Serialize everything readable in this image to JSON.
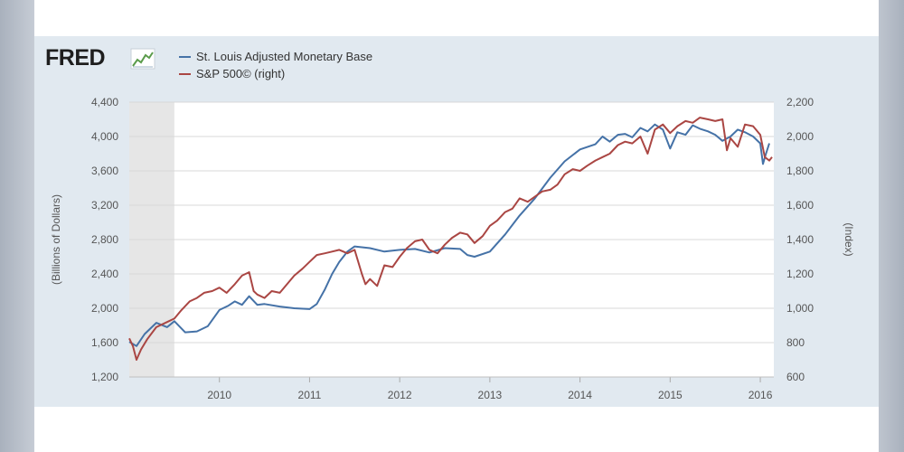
{
  "brand": {
    "logo_text": "FRED",
    "logo_icon": "fred-graph-icon"
  },
  "legend": [
    {
      "label": "St. Louis Adjusted Monetary Base",
      "color": "#4572a7"
    },
    {
      "label": "S&P 500© (right)",
      "color": "#aa4643"
    }
  ],
  "chart_data": {
    "type": "line",
    "grid": true,
    "legend_position": "top-left",
    "recession_band": {
      "x": [
        2009.0,
        2009.5
      ]
    },
    "x_range": [
      2009.0,
      2016.15
    ],
    "x_ticks": [
      {
        "value": 2010,
        "label": "2010"
      },
      {
        "value": 2011,
        "label": "2011"
      },
      {
        "value": 2012,
        "label": "2012"
      },
      {
        "value": 2013,
        "label": "2013"
      },
      {
        "value": 2014,
        "label": "2014"
      },
      {
        "value": 2015,
        "label": "2015"
      },
      {
        "value": 2016,
        "label": "2016"
      }
    ],
    "y_left": {
      "label": "(Billions of Dollars)",
      "range": [
        1200,
        4400
      ],
      "ticks": [
        {
          "value": 1200,
          "label": "1,200"
        },
        {
          "value": 1600,
          "label": "1,600"
        },
        {
          "value": 2000,
          "label": "2,000"
        },
        {
          "value": 2400,
          "label": "2,400"
        },
        {
          "value": 2800,
          "label": "2,800"
        },
        {
          "value": 3200,
          "label": "3,200"
        },
        {
          "value": 3600,
          "label": "3,600"
        },
        {
          "value": 4000,
          "label": "4,000"
        },
        {
          "value": 4400,
          "label": "4,400"
        }
      ]
    },
    "y_right": {
      "label": "(Index)",
      "range": [
        600,
        2200
      ],
      "ticks": [
        {
          "value": 600,
          "label": "600"
        },
        {
          "value": 800,
          "label": "800"
        },
        {
          "value": 1000,
          "label": "1,000"
        },
        {
          "value": 1200,
          "label": "1,200"
        },
        {
          "value": 1400,
          "label": "1,400"
        },
        {
          "value": 1600,
          "label": "1,600"
        },
        {
          "value": 1800,
          "label": "1,800"
        },
        {
          "value": 2000,
          "label": "2,000"
        },
        {
          "value": 2200,
          "label": "2,200"
        }
      ]
    },
    "series": [
      {
        "name": "St. Louis Adjusted Monetary Base",
        "axis": "left",
        "color": "#4572a7",
        "points": [
          [
            2009.0,
            1610
          ],
          [
            2009.08,
            1560
          ],
          [
            2009.17,
            1700
          ],
          [
            2009.3,
            1830
          ],
          [
            2009.42,
            1780
          ],
          [
            2009.5,
            1850
          ],
          [
            2009.62,
            1720
          ],
          [
            2009.75,
            1730
          ],
          [
            2009.87,
            1790
          ],
          [
            2010.0,
            1980
          ],
          [
            2010.1,
            2030
          ],
          [
            2010.17,
            2080
          ],
          [
            2010.25,
            2040
          ],
          [
            2010.33,
            2140
          ],
          [
            2010.42,
            2040
          ],
          [
            2010.5,
            2050
          ],
          [
            2010.67,
            2020
          ],
          [
            2010.83,
            2000
          ],
          [
            2011.0,
            1990
          ],
          [
            2011.08,
            2050
          ],
          [
            2011.17,
            2220
          ],
          [
            2011.25,
            2400
          ],
          [
            2011.33,
            2540
          ],
          [
            2011.42,
            2660
          ],
          [
            2011.5,
            2720
          ],
          [
            2011.67,
            2700
          ],
          [
            2011.83,
            2660
          ],
          [
            2012.0,
            2680
          ],
          [
            2012.17,
            2690
          ],
          [
            2012.33,
            2650
          ],
          [
            2012.5,
            2700
          ],
          [
            2012.67,
            2690
          ],
          [
            2012.75,
            2620
          ],
          [
            2012.83,
            2600
          ],
          [
            2013.0,
            2660
          ],
          [
            2013.17,
            2860
          ],
          [
            2013.33,
            3080
          ],
          [
            2013.5,
            3280
          ],
          [
            2013.67,
            3520
          ],
          [
            2013.83,
            3710
          ],
          [
            2014.0,
            3850
          ],
          [
            2014.17,
            3910
          ],
          [
            2014.25,
            4000
          ],
          [
            2014.33,
            3940
          ],
          [
            2014.42,
            4020
          ],
          [
            2014.5,
            4030
          ],
          [
            2014.58,
            3990
          ],
          [
            2014.67,
            4100
          ],
          [
            2014.75,
            4060
          ],
          [
            2014.83,
            4140
          ],
          [
            2014.92,
            4080
          ],
          [
            2015.0,
            3860
          ],
          [
            2015.08,
            4050
          ],
          [
            2015.17,
            4020
          ],
          [
            2015.25,
            4130
          ],
          [
            2015.33,
            4090
          ],
          [
            2015.42,
            4060
          ],
          [
            2015.5,
            4020
          ],
          [
            2015.58,
            3950
          ],
          [
            2015.67,
            4000
          ],
          [
            2015.75,
            4080
          ],
          [
            2015.83,
            4050
          ],
          [
            2015.92,
            4000
          ],
          [
            2016.0,
            3920
          ],
          [
            2016.03,
            3680
          ],
          [
            2016.06,
            3790
          ],
          [
            2016.1,
            3920
          ]
        ]
      },
      {
        "name": "S&P 500© (right)",
        "axis": "right",
        "color": "#aa4643",
        "points": [
          [
            2009.0,
            825
          ],
          [
            2009.04,
            780
          ],
          [
            2009.08,
            700
          ],
          [
            2009.13,
            760
          ],
          [
            2009.2,
            820
          ],
          [
            2009.3,
            890
          ],
          [
            2009.42,
            920
          ],
          [
            2009.5,
            940
          ],
          [
            2009.58,
            990
          ],
          [
            2009.67,
            1040
          ],
          [
            2009.75,
            1060
          ],
          [
            2009.83,
            1090
          ],
          [
            2009.92,
            1100
          ],
          [
            2010.0,
            1120
          ],
          [
            2010.08,
            1090
          ],
          [
            2010.17,
            1140
          ],
          [
            2010.25,
            1190
          ],
          [
            2010.33,
            1210
          ],
          [
            2010.38,
            1100
          ],
          [
            2010.42,
            1080
          ],
          [
            2010.5,
            1060
          ],
          [
            2010.58,
            1100
          ],
          [
            2010.67,
            1090
          ],
          [
            2010.75,
            1140
          ],
          [
            2010.83,
            1190
          ],
          [
            2010.92,
            1230
          ],
          [
            2011.0,
            1270
          ],
          [
            2011.08,
            1310
          ],
          [
            2011.17,
            1320
          ],
          [
            2011.25,
            1330
          ],
          [
            2011.33,
            1340
          ],
          [
            2011.42,
            1320
          ],
          [
            2011.5,
            1340
          ],
          [
            2011.58,
            1200
          ],
          [
            2011.62,
            1140
          ],
          [
            2011.67,
            1170
          ],
          [
            2011.75,
            1130
          ],
          [
            2011.83,
            1250
          ],
          [
            2011.92,
            1240
          ],
          [
            2012.0,
            1300
          ],
          [
            2012.08,
            1350
          ],
          [
            2012.17,
            1390
          ],
          [
            2012.25,
            1400
          ],
          [
            2012.33,
            1340
          ],
          [
            2012.42,
            1320
          ],
          [
            2012.5,
            1370
          ],
          [
            2012.58,
            1410
          ],
          [
            2012.67,
            1440
          ],
          [
            2012.75,
            1430
          ],
          [
            2012.83,
            1380
          ],
          [
            2012.92,
            1420
          ],
          [
            2013.0,
            1480
          ],
          [
            2013.08,
            1510
          ],
          [
            2013.17,
            1560
          ],
          [
            2013.25,
            1580
          ],
          [
            2013.33,
            1640
          ],
          [
            2013.42,
            1620
          ],
          [
            2013.5,
            1650
          ],
          [
            2013.58,
            1680
          ],
          [
            2013.67,
            1690
          ],
          [
            2013.75,
            1720
          ],
          [
            2013.83,
            1780
          ],
          [
            2013.92,
            1810
          ],
          [
            2014.0,
            1800
          ],
          [
            2014.08,
            1830
          ],
          [
            2014.17,
            1860
          ],
          [
            2014.25,
            1880
          ],
          [
            2014.33,
            1900
          ],
          [
            2014.42,
            1950
          ],
          [
            2014.5,
            1970
          ],
          [
            2014.58,
            1960
          ],
          [
            2014.67,
            2000
          ],
          [
            2014.75,
            1900
          ],
          [
            2014.83,
            2040
          ],
          [
            2014.92,
            2070
          ],
          [
            2015.0,
            2020
          ],
          [
            2015.08,
            2060
          ],
          [
            2015.17,
            2090
          ],
          [
            2015.25,
            2080
          ],
          [
            2015.33,
            2110
          ],
          [
            2015.42,
            2100
          ],
          [
            2015.5,
            2090
          ],
          [
            2015.58,
            2100
          ],
          [
            2015.63,
            1920
          ],
          [
            2015.67,
            1990
          ],
          [
            2015.75,
            1940
          ],
          [
            2015.83,
            2070
          ],
          [
            2015.92,
            2060
          ],
          [
            2016.0,
            2010
          ],
          [
            2016.05,
            1880
          ],
          [
            2016.1,
            1860
          ],
          [
            2016.13,
            1880
          ]
        ]
      }
    ]
  }
}
